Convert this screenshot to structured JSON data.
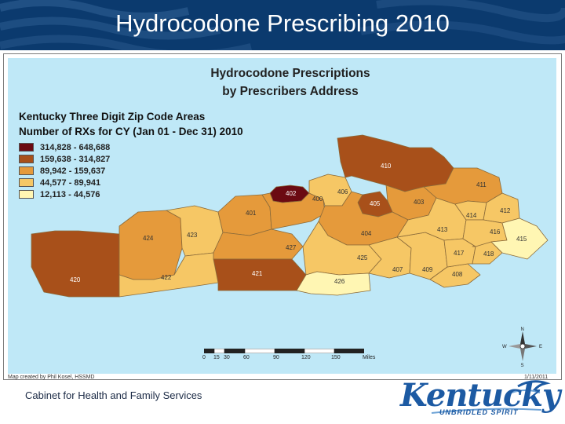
{
  "slide": {
    "title": "Hydrocodone Prescribing 2010",
    "footer": "Cabinet for Health and Family Services"
  },
  "map": {
    "title_line1": "Hydrocodone Prescriptions",
    "title_line2": "by Prescribers Address",
    "legend_heading_line1": "Kentucky Three Digit Zip Code Areas",
    "legend_heading_line2": "Number of RXs for CY (Jan 01 - Dec 31) 2010",
    "legend": [
      {
        "label": "314,828 - 648,688",
        "color": "#6b0a12"
      },
      {
        "label": "159,638 - 314,827",
        "color": "#a8501a"
      },
      {
        "label": "89,942 - 159,637",
        "color": "#e59a3b"
      },
      {
        "label": "44,577 - 89,941",
        "color": "#f6c765"
      },
      {
        "label": "12,113 - 44,576",
        "color": "#fff6b3"
      }
    ],
    "zip_areas": [
      {
        "code": "402",
        "class": 1
      },
      {
        "code": "410",
        "class": 2
      },
      {
        "code": "405",
        "class": 2
      },
      {
        "code": "420",
        "class": 2
      },
      {
        "code": "421",
        "class": 2
      },
      {
        "code": "400",
        "class": 3
      },
      {
        "code": "401",
        "class": 3
      },
      {
        "code": "403",
        "class": 3
      },
      {
        "code": "404",
        "class": 3
      },
      {
        "code": "424",
        "class": 3
      },
      {
        "code": "427",
        "class": 3
      },
      {
        "code": "411",
        "class": 3
      },
      {
        "code": "406",
        "class": 4
      },
      {
        "code": "413",
        "class": 4
      },
      {
        "code": "407",
        "class": 4
      },
      {
        "code": "408",
        "class": 4
      },
      {
        "code": "409",
        "class": 4
      },
      {
        "code": "412",
        "class": 4
      },
      {
        "code": "414",
        "class": 4
      },
      {
        "code": "416",
        "class": 4
      },
      {
        "code": "417",
        "class": 4
      },
      {
        "code": "418",
        "class": 4
      },
      {
        "code": "422",
        "class": 4
      },
      {
        "code": "423",
        "class": 4
      },
      {
        "code": "425",
        "class": 4
      },
      {
        "code": "415",
        "class": 5
      },
      {
        "code": "426",
        "class": 5
      }
    ],
    "scale_ticks": [
      "0",
      "15",
      "30",
      "60",
      "90",
      "120",
      "150"
    ],
    "scale_unit": "Miles",
    "compass": {
      "n": "N",
      "s": "S",
      "e": "E",
      "w": "W"
    },
    "credit_left": "Map created by Phil Kosel, HSSMD",
    "credit_right": "1/11/2011"
  },
  "logo": {
    "word": "Kentucky",
    "tagline": "UNBRIDLED SPIRIT"
  }
}
